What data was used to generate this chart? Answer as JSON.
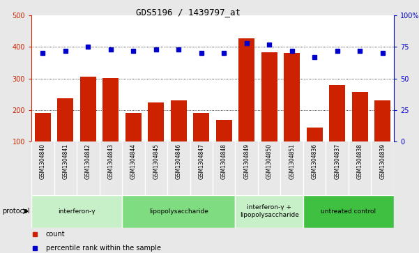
{
  "title": "GDS5196 / 1439797_at",
  "samples": [
    "GSM1304840",
    "GSM1304841",
    "GSM1304842",
    "GSM1304843",
    "GSM1304844",
    "GSM1304845",
    "GSM1304846",
    "GSM1304847",
    "GSM1304848",
    "GSM1304849",
    "GSM1304850",
    "GSM1304851",
    "GSM1304836",
    "GSM1304837",
    "GSM1304838",
    "GSM1304839"
  ],
  "counts": [
    190,
    238,
    305,
    302,
    192,
    225,
    231,
    192,
    168,
    427,
    383,
    380,
    145,
    280,
    257,
    231
  ],
  "percentile_ranks": [
    70,
    72,
    75,
    73,
    72,
    73,
    73,
    70,
    70,
    78,
    77,
    72,
    67,
    72,
    72,
    70
  ],
  "groups": [
    {
      "label": "interferon-γ",
      "start": 0,
      "end": 3,
      "color": "#c8f0c8"
    },
    {
      "label": "lipopolysaccharide",
      "start": 4,
      "end": 8,
      "color": "#80dc80"
    },
    {
      "label": "interferon-γ +\nlipopolysaccharide",
      "start": 9,
      "end": 11,
      "color": "#c8f0c8"
    },
    {
      "label": "untreated control",
      "start": 12,
      "end": 15,
      "color": "#40c040"
    }
  ],
  "ylim_left": [
    100,
    500
  ],
  "ylim_right": [
    0,
    100
  ],
  "bar_color": "#cc2200",
  "dot_color": "#0000cc",
  "background_color": "#e8e8e8",
  "plot_bg_color": "#ffffff",
  "label_bg_color": "#d0d0d0",
  "yticks_left": [
    100,
    200,
    300,
    400,
    500
  ],
  "yticks_right": [
    0,
    25,
    50,
    75,
    100
  ],
  "ytick_labels_right": [
    "0",
    "25",
    "50",
    "75",
    "100%"
  ],
  "grid_lines": [
    200,
    300,
    400
  ]
}
